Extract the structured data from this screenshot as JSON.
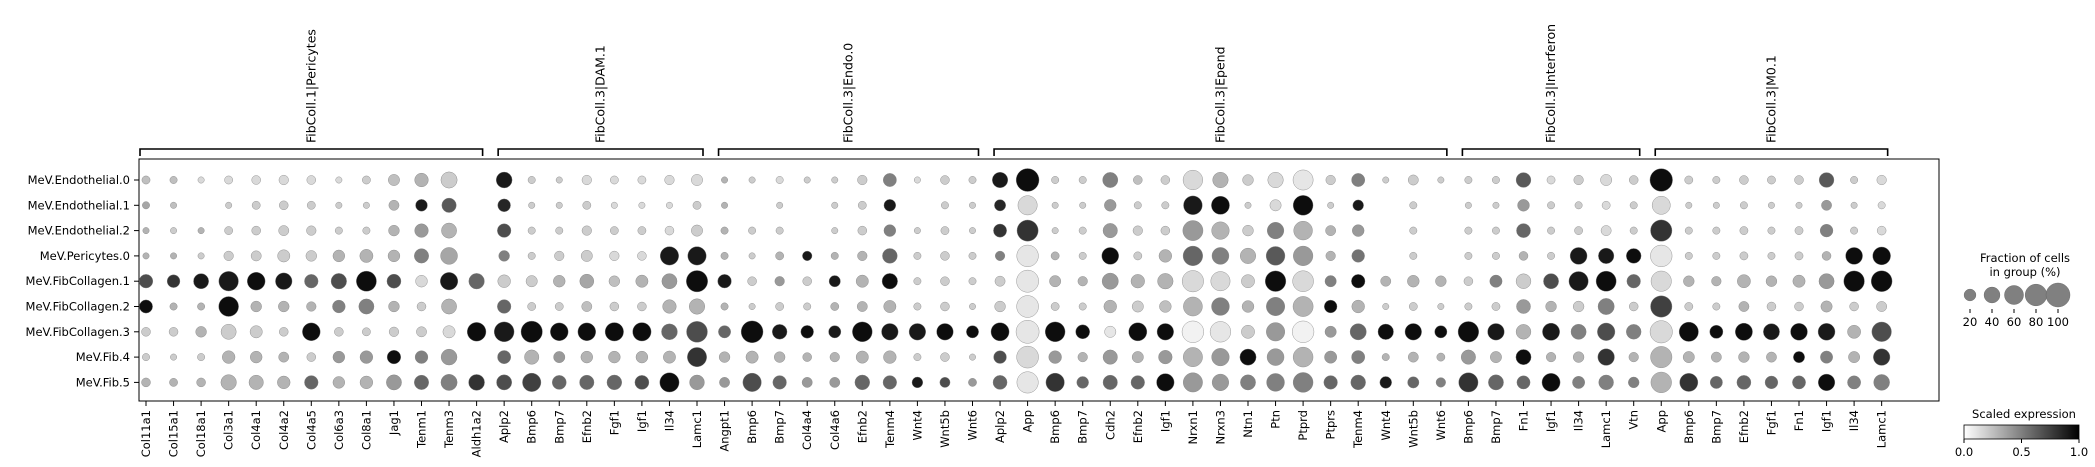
{
  "chart_data": {
    "type": "dotplot",
    "rows": [
      "MeV.Endothelial.0",
      "MeV.Endothelial.1",
      "MeV.Endothelial.2",
      "MeV.Pericytes.0",
      "MeV.FibCollagen.1",
      "MeV.FibCollagen.2",
      "MeV.FibCollagen.3",
      "MeV.Fib.4",
      "MeV.Fib.5"
    ],
    "groups": [
      {
        "label": "FibColl.1|Pericytes",
        "genes": [
          "Col11a1",
          "Col15a1",
          "Col18a1",
          "Col3a1",
          "Col4a1",
          "Col4a2",
          "Col4a5",
          "Col6a3",
          "Col8a1",
          "Jag1",
          "Tenm1",
          "Tenm3",
          "Aldh1a2"
        ]
      },
      {
        "label": "FibColl.3|DAM.1",
        "genes": [
          "Aplp2",
          "Bmp6",
          "Bmp7",
          "Efnb2",
          "Fgf1",
          "Igf1",
          "Il34",
          "Lamc1"
        ]
      },
      {
        "label": "FibColl.3|Endo.0",
        "genes": [
          "Angpt1",
          "Bmp6",
          "Bmp7",
          "Col4a4",
          "Col4a6",
          "Efnb2",
          "Tenm4",
          "Wnt4",
          "Wnt5b",
          "Wnt6"
        ]
      },
      {
        "label": "FibColl.3|Epend",
        "genes": [
          "Aplp2",
          "App",
          "Bmp6",
          "Bmp7",
          "Cdh2",
          "Efnb2",
          "Igf1",
          "Nrxn1",
          "Nrxn3",
          "Ntn1",
          "Ptn",
          "Ptprd",
          "Ptprs",
          "Tenm4",
          "Wnt4",
          "Wnt5b",
          "Wnt6"
        ]
      },
      {
        "label": "FibColl.3|Interferon",
        "genes": [
          "Bmp6",
          "Bmp7",
          "Fn1",
          "Igf1",
          "Il34",
          "Lamc1",
          "Vtn"
        ]
      },
      {
        "label": "FibColl.3|M0.1",
        "genes": [
          "App",
          "Bmp6",
          "Bmp7",
          "Efnb2",
          "Fgf1",
          "Fn1",
          "Igf1",
          "Il34",
          "Lamc1"
        ]
      }
    ],
    "size_legend": {
      "title": "Fraction of cells in group (%)",
      "values": [
        20,
        40,
        60,
        80,
        100
      ]
    },
    "color_legend": {
      "title": "Scaled expression",
      "ticks": [
        "0.0",
        "0.5",
        "1.0"
      ],
      "low_color": "#ffffff",
      "high_color": "#000000"
    },
    "fraction": [
      [
        8,
        6,
        4,
        8,
        10,
        12,
        10,
        4,
        8,
        18,
        28,
        42,
        0,
        40,
        6,
        4,
        12,
        8,
        8,
        12,
        18,
        4,
        4,
        6,
        4,
        4,
        12,
        26,
        4,
        10,
        6,
        38,
        90,
        6,
        6,
        36,
        10,
        10,
        64,
        38,
        16,
        38,
        68,
        12,
        26,
        4,
        14,
        4,
        6,
        6,
        34,
        8,
        12,
        18,
        10,
        88,
        8,
        6,
        10,
        8,
        10,
        34,
        6,
        12
      ],
      [
        6,
        4,
        0,
        4,
        8,
        10,
        8,
        4,
        4,
        14,
        20,
        32,
        0,
        24,
        4,
        4,
        8,
        4,
        4,
        4,
        8,
        4,
        0,
        4,
        0,
        4,
        8,
        20,
        0,
        6,
        4,
        18,
        62,
        4,
        4,
        20,
        6,
        6,
        58,
        54,
        4,
        18,
        66,
        4,
        16,
        0,
        6,
        0,
        4,
        4,
        20,
        6,
        6,
        8,
        6,
        54,
        4,
        4,
        6,
        4,
        4,
        14,
        4,
        6
      ],
      [
        4,
        4,
        4,
        8,
        10,
        14,
        12,
        6,
        6,
        16,
        28,
        36,
        0,
        28,
        6,
        6,
        12,
        8,
        8,
        10,
        18,
        6,
        6,
        6,
        0,
        4,
        10,
        20,
        4,
        8,
        4,
        26,
        76,
        4,
        6,
        32,
        12,
        10,
        68,
        50,
        16,
        44,
        58,
        14,
        20,
        0,
        6,
        0,
        6,
        6,
        30,
        6,
        8,
        14,
        6,
        78,
        6,
        6,
        8,
        6,
        8,
        24,
        6,
        10
      ],
      [
        4,
        4,
        4,
        12,
        14,
        22,
        16,
        20,
        26,
        20,
        32,
        46,
        0,
        16,
        6,
        12,
        18,
        12,
        10,
        56,
        56,
        6,
        4,
        8,
        12,
        6,
        12,
        34,
        6,
        10,
        6,
        12,
        80,
        8,
        6,
        46,
        8,
        24,
        64,
        46,
        38,
        58,
        64,
        12,
        24,
        0,
        6,
        0,
        6,
        6,
        10,
        6,
        46,
        38,
        34,
        80,
        6,
        6,
        8,
        6,
        8,
        10,
        46,
        52
      ],
      [
        28,
        24,
        36,
        64,
        52,
        44,
        28,
        38,
        68,
        30,
        20,
        50,
        38,
        24,
        18,
        20,
        30,
        16,
        22,
        36,
        78,
        28,
        10,
        12,
        10,
        18,
        22,
        38,
        6,
        10,
        6,
        14,
        84,
        18,
        12,
        42,
        28,
        38,
        78,
        62,
        26,
        72,
        74,
        18,
        28,
        14,
        20,
        16,
        10,
        22,
        34,
        36,
        62,
        68,
        28,
        70,
        16,
        12,
        26,
        16,
        22,
        36,
        72,
        74
      ],
      [
        26,
        6,
        6,
        66,
        16,
        16,
        12,
        24,
        36,
        16,
        10,
        36,
        0,
        28,
        8,
        8,
        14,
        10,
        10,
        28,
        38,
        6,
        4,
        8,
        6,
        8,
        14,
        22,
        6,
        10,
        4,
        16,
        82,
        8,
        6,
        24,
        18,
        20,
        60,
        52,
        20,
        56,
        68,
        24,
        24,
        4,
        8,
        4,
        6,
        8,
        30,
        16,
        16,
        42,
        10,
        78,
        8,
        6,
        14,
        10,
        10,
        18,
        10,
        14
      ],
      [
        10,
        10,
        16,
        36,
        22,
        10,
        52,
        10,
        8,
        12,
        14,
        22,
        58,
        66,
        78,
        52,
        52,
        56,
        56,
        40,
        74,
        22,
        82,
        34,
        24,
        22,
        66,
        44,
        44,
        44,
        22,
        54,
        92,
        66,
        30,
        18,
        54,
        44,
        80,
        72,
        26,
        56,
        80,
        18,
        42,
        38,
        44,
        22,
        72,
        44,
        34,
        48,
        36,
        50,
        34,
        86,
        62,
        26,
        48,
        42,
        46,
        46,
        26,
        64
      ],
      [
        6,
        4,
        6,
        24,
        20,
        14,
        10,
        20,
        24,
        28,
        24,
        40,
        0,
        26,
        32,
        18,
        20,
        20,
        20,
        22,
        62,
        16,
        22,
        16,
        10,
        12,
        22,
        24,
        6,
        10,
        4,
        24,
        82,
        24,
        12,
        32,
        18,
        28,
        62,
        50,
        42,
        46,
        66,
        22,
        26,
        6,
        14,
        8,
        32,
        18,
        36,
        12,
        16,
        44,
        12,
        78,
        18,
        14,
        16,
        14,
        18,
        22,
        18,
        44
      ],
      [
        10,
        8,
        10,
        38,
        32,
        24,
        28,
        20,
        24,
        36,
        32,
        42,
        40,
        36,
        56,
        30,
        32,
        34,
        30,
        62,
        34,
        14,
        56,
        28,
        14,
        14,
        34,
        28,
        16,
        14,
        8,
        30,
        78,
        56,
        20,
        32,
        28,
        50,
        62,
        44,
        36,
        52,
        66,
        28,
        34,
        20,
        18,
        12,
        62,
        36,
        26,
        54,
        22,
        34,
        16,
        72,
        54,
        22,
        30,
        24,
        26,
        44,
        26,
        40
      ]
    ],
    "expression": [
      [
        0.25,
        0.25,
        0.15,
        0.15,
        0.15,
        0.15,
        0.15,
        0.15,
        0.2,
        0.25,
        0.3,
        0.2,
        0,
        0.9,
        0.2,
        0.2,
        0.15,
        0.15,
        0.15,
        0.15,
        0.15,
        0.3,
        0.2,
        0.15,
        0.2,
        0.2,
        0.2,
        0.5,
        0.15,
        0.2,
        0.2,
        0.9,
        0.95,
        0.2,
        0.2,
        0.5,
        0.25,
        0.2,
        0.15,
        0.3,
        0.2,
        0.15,
        0.1,
        0.2,
        0.5,
        0.2,
        0.2,
        0.2,
        0.2,
        0.2,
        0.65,
        0.15,
        0.2,
        0.15,
        0.2,
        0.95,
        0.2,
        0.2,
        0.2,
        0.2,
        0.2,
        0.65,
        0.2,
        0.15
      ],
      [
        0.35,
        0.25,
        0,
        0.2,
        0.2,
        0.2,
        0.2,
        0.2,
        0.2,
        0.3,
        0.9,
        0.65,
        0,
        0.85,
        0.2,
        0.2,
        0.2,
        0.15,
        0.15,
        0.15,
        0.2,
        0.3,
        0,
        0.2,
        0,
        0.2,
        0.2,
        0.9,
        0,
        0.2,
        0.2,
        0.85,
        0.15,
        0.2,
        0.2,
        0.4,
        0.2,
        0.2,
        0.9,
        0.95,
        0.2,
        0.15,
        0.95,
        0.2,
        0.9,
        0,
        0.2,
        0,
        0.2,
        0.2,
        0.4,
        0.2,
        0.2,
        0.15,
        0.2,
        0.15,
        0.2,
        0.2,
        0.2,
        0.2,
        0.2,
        0.4,
        0.2,
        0.15
      ],
      [
        0.3,
        0.2,
        0.3,
        0.2,
        0.2,
        0.2,
        0.2,
        0.2,
        0.2,
        0.3,
        0.4,
        0.3,
        0,
        0.7,
        0.2,
        0.2,
        0.2,
        0.2,
        0.2,
        0.15,
        0.2,
        0.3,
        0.2,
        0.2,
        0,
        0.2,
        0.2,
        0.5,
        0.2,
        0.2,
        0.2,
        0.8,
        0.8,
        0.2,
        0.2,
        0.4,
        0.2,
        0.2,
        0.4,
        0.3,
        0.2,
        0.5,
        0.3,
        0.3,
        0.4,
        0,
        0.2,
        0,
        0.2,
        0.2,
        0.6,
        0.2,
        0.2,
        0.15,
        0.2,
        0.8,
        0.2,
        0.2,
        0.2,
        0.2,
        0.2,
        0.5,
        0.2,
        0.15
      ],
      [
        0.3,
        0.3,
        0.2,
        0.2,
        0.2,
        0.2,
        0.2,
        0.3,
        0.3,
        0.3,
        0.5,
        0.35,
        0,
        0.5,
        0.2,
        0.2,
        0.2,
        0.15,
        0.15,
        0.9,
        0.9,
        0.3,
        0.2,
        0.3,
        0.9,
        0.3,
        0.3,
        0.6,
        0.2,
        0.2,
        0.2,
        0.5,
        0.1,
        0.3,
        0.2,
        0.95,
        0.2,
        0.3,
        0.6,
        0.5,
        0.3,
        0.65,
        0.4,
        0.3,
        0.55,
        0,
        0.2,
        0,
        0.2,
        0.2,
        0.3,
        0.2,
        0.9,
        0.9,
        0.95,
        0.1,
        0.2,
        0.2,
        0.2,
        0.2,
        0.2,
        0.3,
        0.95,
        0.95
      ],
      [
        0.7,
        0.8,
        0.9,
        0.9,
        0.95,
        0.9,
        0.6,
        0.7,
        0.95,
        0.7,
        0.15,
        0.9,
        0.6,
        0.2,
        0.2,
        0.3,
        0.35,
        0.25,
        0.3,
        0.4,
        0.95,
        0.9,
        0.2,
        0.4,
        0.2,
        0.9,
        0.3,
        0.95,
        0.2,
        0.2,
        0.2,
        0.2,
        0.1,
        0.3,
        0.3,
        0.4,
        0.3,
        0.3,
        0.15,
        0.15,
        0.2,
        0.95,
        0.15,
        0.5,
        0.95,
        0.3,
        0.3,
        0.3,
        0.2,
        0.5,
        0.2,
        0.7,
        0.9,
        0.95,
        0.6,
        0.15,
        0.3,
        0.3,
        0.3,
        0.3,
        0.3,
        0.4,
        0.95,
        0.95
      ],
      [
        0.95,
        0.3,
        0.3,
        0.95,
        0.3,
        0.3,
        0.3,
        0.5,
        0.5,
        0.3,
        0.2,
        0.3,
        0,
        0.6,
        0.2,
        0.2,
        0.25,
        0.2,
        0.2,
        0.3,
        0.3,
        0.3,
        0.2,
        0.2,
        0.2,
        0.3,
        0.3,
        0.3,
        0.2,
        0.2,
        0.2,
        0.2,
        0.1,
        0.2,
        0.2,
        0.3,
        0.2,
        0.25,
        0.3,
        0.5,
        0.3,
        0.5,
        0.3,
        0.95,
        0.3,
        0.2,
        0.2,
        0.2,
        0.2,
        0.2,
        0.4,
        0.3,
        0.2,
        0.5,
        0.2,
        0.75,
        0.2,
        0.2,
        0.3,
        0.2,
        0.2,
        0.3,
        0.2,
        0.2
      ],
      [
        0.2,
        0.2,
        0.3,
        0.2,
        0.2,
        0.2,
        0.95,
        0.2,
        0.2,
        0.2,
        0.2,
        0.15,
        0.95,
        0.9,
        0.95,
        0.95,
        0.95,
        0.95,
        0.95,
        0.6,
        0.7,
        0.6,
        0.95,
        0.9,
        0.95,
        0.9,
        0.95,
        0.9,
        0.9,
        0.95,
        0.95,
        0.95,
        0.1,
        0.95,
        0.95,
        0.1,
        0.95,
        0.95,
        0.05,
        0.1,
        0.2,
        0.4,
        0.05,
        0.4,
        0.6,
        0.95,
        0.95,
        0.95,
        0.95,
        0.9,
        0.3,
        0.9,
        0.5,
        0.7,
        0.5,
        0.15,
        0.95,
        0.95,
        0.95,
        0.9,
        0.95,
        0.9,
        0.3,
        0.7
      ],
      [
        0.2,
        0.2,
        0.2,
        0.3,
        0.3,
        0.3,
        0.2,
        0.4,
        0.4,
        0.95,
        0.5,
        0.4,
        0,
        0.6,
        0.3,
        0.4,
        0.3,
        0.3,
        0.3,
        0.3,
        0.8,
        0.3,
        0.3,
        0.3,
        0.3,
        0.3,
        0.3,
        0.3,
        0.2,
        0.2,
        0.2,
        0.7,
        0.15,
        0.4,
        0.3,
        0.4,
        0.3,
        0.4,
        0.3,
        0.4,
        0.95,
        0.4,
        0.3,
        0.4,
        0.5,
        0.3,
        0.3,
        0.3,
        0.4,
        0.3,
        0.95,
        0.3,
        0.3,
        0.8,
        0.3,
        0.3,
        0.3,
        0.3,
        0.3,
        0.3,
        0.95,
        0.5,
        0.3,
        0.8
      ],
      [
        0.3,
        0.3,
        0.3,
        0.3,
        0.3,
        0.3,
        0.6,
        0.3,
        0.3,
        0.4,
        0.6,
        0.5,
        0.8,
        0.7,
        0.75,
        0.6,
        0.6,
        0.6,
        0.7,
        0.95,
        0.4,
        0.4,
        0.7,
        0.6,
        0.4,
        0.4,
        0.6,
        0.6,
        0.9,
        0.7,
        0.4,
        0.6,
        0.1,
        0.8,
        0.6,
        0.6,
        0.6,
        0.95,
        0.4,
        0.4,
        0.5,
        0.5,
        0.5,
        0.6,
        0.6,
        0.9,
        0.6,
        0.5,
        0.8,
        0.6,
        0.6,
        0.95,
        0.5,
        0.5,
        0.5,
        0.3,
        0.8,
        0.6,
        0.6,
        0.6,
        0.6,
        0.95,
        0.5,
        0.5
      ]
    ]
  }
}
